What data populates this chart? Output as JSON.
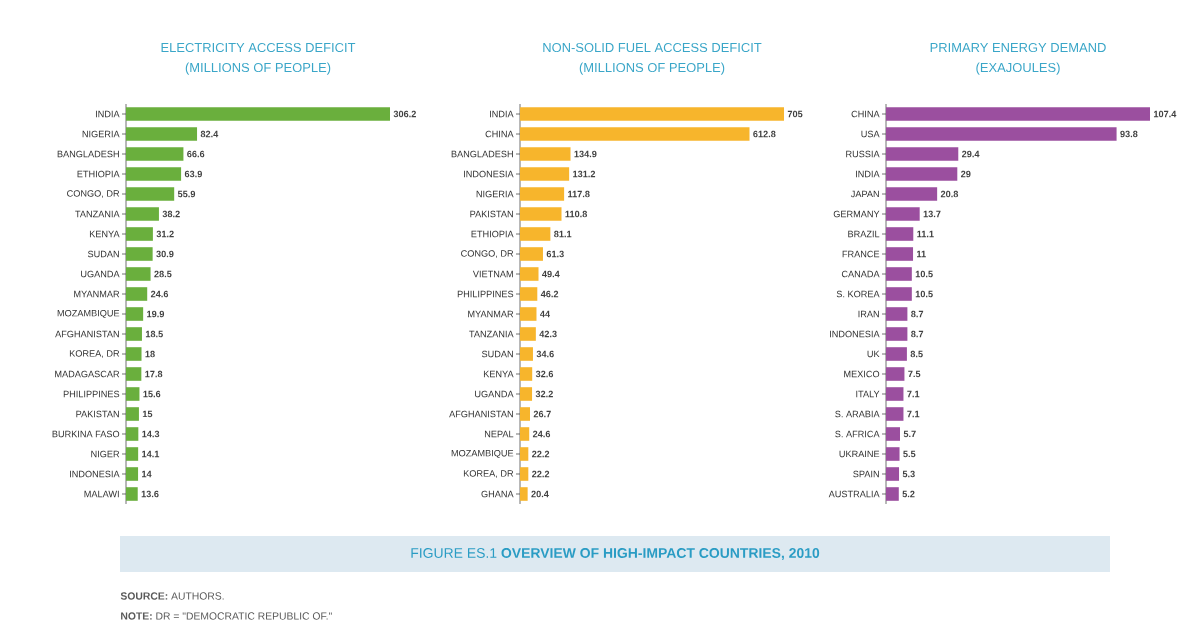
{
  "chart_data": [
    {
      "type": "bar",
      "orientation": "horizontal",
      "title": "ELECTRICITY ACCESS DEFICIT",
      "subtitle": "(MILLIONS OF PEOPLE)",
      "data_labels": true,
      "color": "#6aaf3d",
      "categories": [
        "INDIA",
        "NIGERIA",
        "BANGLADESH",
        "ETHIOPIA",
        "CONGO, DR",
        "TANZANIA",
        "KENYA",
        "SUDAN",
        "UGANDA",
        "MYANMAR",
        "MOZAMBIQUE",
        "AFGHANISTAN",
        "KOREA, DR",
        "MADAGASCAR",
        "PHILIPPINES",
        "PAKISTAN",
        "BURKINA FASO",
        "NIGER",
        "INDONESIA",
        "MALAWI"
      ],
      "values": [
        306.2,
        82.4,
        66.6,
        63.9,
        55.9,
        38.2,
        31.2,
        30.9,
        28.5,
        24.6,
        19.9,
        18.5,
        18,
        17.8,
        15.6,
        15,
        14.3,
        14.1,
        14,
        13.6
      ],
      "annotations": [
        "FIGURE ES.1 **OVERVIEW OF HIGH-IMPACT COUNTRIES, 2010**",
        "**SOURCE:** AUTHORS.",
        "**NOTE:** DR = \"DEMOCRATIC REPUBLIC OF.\""
      ]
    },
    {
      "type": "bar",
      "orientation": "horizontal",
      "title": "NON-SOLID FUEL ACCESS DEFICIT",
      "subtitle": "(MILLIONS OF PEOPLE)",
      "data_labels": true,
      "color": "#f7b52c",
      "categories": [
        "INDIA",
        "CHINA",
        "BANGLADESH",
        "INDONESIA",
        "NIGERIA",
        "PAKISTAN",
        "ETHIOPIA",
        "CONGO, DR",
        "VIETNAM",
        "PHILIPPINES",
        "MYANMAR",
        "TANZANIA",
        "SUDAN",
        "KENYA",
        "UGANDA",
        "AFGHANISTAN",
        "NEPAL",
        "MOZAMBIQUE",
        "KOREA, DR",
        "GHANA"
      ],
      "values": [
        705,
        612.8,
        134.9,
        131.2,
        117.8,
        110.8,
        81.1,
        61.3,
        49.4,
        46.2,
        44,
        42.3,
        34.6,
        32.6,
        32.2,
        26.7,
        24.6,
        22.2,
        22.2,
        20.4
      ]
    },
    {
      "type": "bar",
      "orientation": "horizontal",
      "title": "PRIMARY ENERGY DEMAND",
      "subtitle": "(EXAJOULES)",
      "data_labels": true,
      "color": "#9b4f9f",
      "categories": [
        "CHINA",
        "USA",
        "RUSSIA",
        "INDIA",
        "JAPAN",
        "GERMANY",
        "BRAZIL",
        "FRANCE",
        "CANADA",
        "S. KOREA",
        "IRAN",
        "INDONESIA",
        "UK",
        "MEXICO",
        "ITALY",
        "S. ARABIA",
        "S. AFRICA",
        "UKRAINE",
        "SPAIN",
        "AUSTRALIA"
      ],
      "values": [
        107.4,
        93.8,
        29.4,
        29,
        20.8,
        13.7,
        11.1,
        11,
        10.5,
        10.5,
        8.7,
        8.7,
        8.5,
        7.5,
        7.1,
        7.1,
        5.7,
        5.5,
        5.3,
        5.2
      ]
    }
  ]
}
